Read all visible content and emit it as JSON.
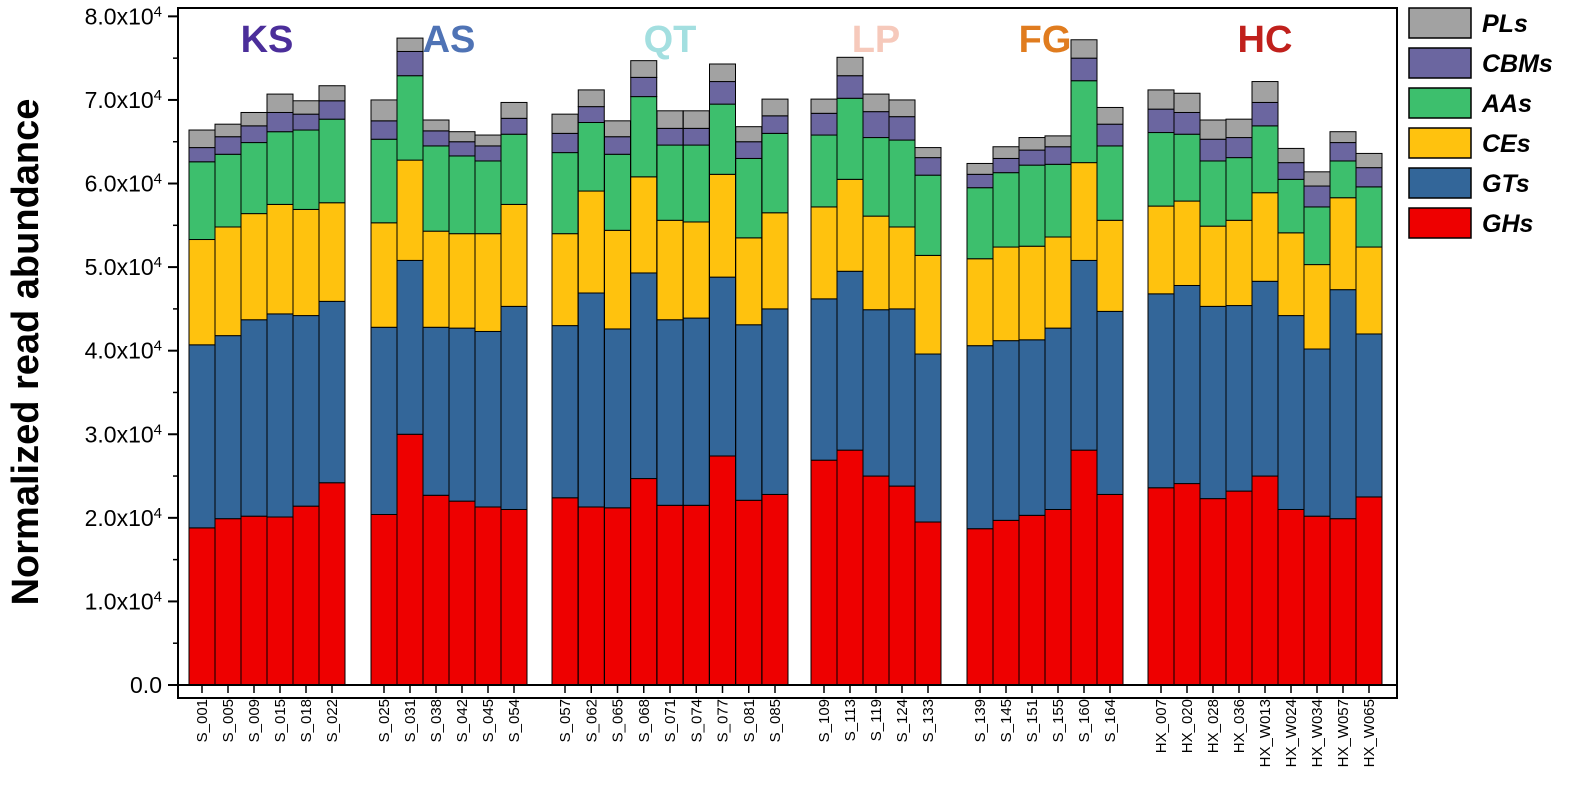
{
  "chart_data": {
    "type": "bar",
    "stacked": true,
    "title": "",
    "xlabel": "",
    "ylabel": "Normalized read abundance",
    "ylim": [
      0,
      81000
    ],
    "y_ticks": [
      0,
      10000,
      20000,
      30000,
      40000,
      50000,
      60000,
      70000,
      80000
    ],
    "y_tick_labels": [
      {
        "mantissa": "0.0",
        "exp": ""
      },
      {
        "mantissa": "1.0x10",
        "exp": "4"
      },
      {
        "mantissa": "2.0x10",
        "exp": "4"
      },
      {
        "mantissa": "3.0x10",
        "exp": "4"
      },
      {
        "mantissa": "4.0x10",
        "exp": "4"
      },
      {
        "mantissa": "5.0x10",
        "exp": "4"
      },
      {
        "mantissa": "6.0x10",
        "exp": "4"
      },
      {
        "mantissa": "7.0x10",
        "exp": "4"
      },
      {
        "mantissa": "8.0x10",
        "exp": "4"
      }
    ],
    "legend_position": "right",
    "groups": [
      {
        "name": "KS",
        "color": "#4b2e9a",
        "count": 6
      },
      {
        "name": "AS",
        "color": "#4f73b5",
        "count": 6
      },
      {
        "name": "QT",
        "color": "#a3dfe0",
        "count": 9
      },
      {
        "name": "LP",
        "color": "#f6c9bb",
        "count": 5
      },
      {
        "name": "FG",
        "color": "#e07c1f",
        "count": 6
      },
      {
        "name": "HC",
        "color": "#c0201c",
        "count": 9
      }
    ],
    "categories": [
      "S_001",
      "S_005",
      "S_009",
      "S_015",
      "S_018",
      "S_022",
      "S_025",
      "S_031",
      "S_038",
      "S_042",
      "S_045",
      "S_054",
      "S_057",
      "S_062",
      "S_065",
      "S_068",
      "S_071",
      "S_074",
      "S_077",
      "S_081",
      "S_085",
      "S_109",
      "S_113",
      "S_119",
      "S_124",
      "S_133",
      "S_139",
      "S_145",
      "S_151",
      "S_155",
      "S_160",
      "S_164",
      "HX_007",
      "HX_020",
      "HX_028",
      "HX_036",
      "HX_W013",
      "HX_W024",
      "HX_W034",
      "HX_W057",
      "HX_W065"
    ],
    "series": [
      {
        "name": "GHs",
        "color": "#ee0000",
        "values": [
          18800,
          19900,
          20200,
          20100,
          21400,
          24200,
          20400,
          30000,
          22700,
          22000,
          21300,
          21000,
          22400,
          21300,
          21200,
          24700,
          21500,
          21500,
          27400,
          22100,
          22800,
          26900,
          28100,
          25000,
          23800,
          19500,
          18700,
          19700,
          20300,
          21000,
          28100,
          22800,
          23600,
          24100,
          22300,
          23200,
          25000,
          21000,
          20200,
          19900,
          22500
        ]
      },
      {
        "name": "GTs",
        "color": "#336699",
        "values": [
          21900,
          21900,
          23500,
          24300,
          22800,
          21700,
          22400,
          20800,
          20100,
          20700,
          21000,
          24300,
          20600,
          25600,
          21400,
          24600,
          22200,
          22400,
          21400,
          21000,
          22200,
          19300,
          21400,
          19900,
          21200,
          20100,
          21900,
          21500,
          21000,
          21700,
          22700,
          21900,
          23200,
          23700,
          23000,
          22200,
          23300,
          23200,
          20000,
          27400,
          19500
        ]
      },
      {
        "name": "CEs",
        "color": "#ffc20e",
        "values": [
          12600,
          13000,
          12700,
          13100,
          12700,
          11800,
          12500,
          12000,
          11500,
          11300,
          11700,
          12200,
          11000,
          12200,
          11800,
          11500,
          11900,
          11500,
          12300,
          10400,
          11500,
          11000,
          11000,
          11200,
          9800,
          11800,
          10400,
          11200,
          11200,
          10900,
          11700,
          10900,
          10500,
          10100,
          9600,
          10200,
          10600,
          9900,
          10100,
          11000,
          10400
        ]
      },
      {
        "name": "AAs",
        "color": "#3dbf6d",
        "values": [
          9300,
          8700,
          8500,
          8700,
          9500,
          10000,
          10000,
          10100,
          10200,
          9300,
          8700,
          8400,
          9700,
          8200,
          9100,
          9600,
          9000,
          9200,
          8400,
          9500,
          9500,
          8600,
          9700,
          9400,
          10400,
          9600,
          8500,
          8900,
          9700,
          8700,
          9800,
          8900,
          8800,
          8000,
          7800,
          7500,
          8000,
          6400,
          6900,
          4400,
          7200
        ]
      },
      {
        "name": "CBMs",
        "color": "#6b66a0",
        "values": [
          1700,
          2100,
          2000,
          2300,
          1900,
          2200,
          2200,
          2900,
          1800,
          1700,
          1800,
          1900,
          2300,
          1900,
          2100,
          2300,
          2000,
          2000,
          2700,
          2000,
          2100,
          2600,
          2700,
          3100,
          2800,
          2100,
          1600,
          1700,
          1800,
          2100,
          2700,
          2600,
          2800,
          2600,
          2600,
          2400,
          2800,
          2000,
          2500,
          2200,
          2300
        ]
      },
      {
        "name": "PLs",
        "color": "#a2a2a2",
        "values": [
          2100,
          1500,
          1600,
          2200,
          1600,
          1800,
          2500,
          1600,
          1300,
          1200,
          1300,
          1900,
          2300,
          2000,
          1900,
          2000,
          2100,
          2100,
          2100,
          1800,
          2000,
          1700,
          2200,
          2100,
          2000,
          1200,
          1300,
          1400,
          1500,
          1300,
          2200,
          2000,
          2300,
          2300,
          2300,
          2200,
          2500,
          1700,
          1700,
          1300,
          1700
        ]
      }
    ],
    "legend_order": [
      "PLs",
      "CBMs",
      "AAs",
      "CEs",
      "GTs",
      "GHs"
    ]
  }
}
